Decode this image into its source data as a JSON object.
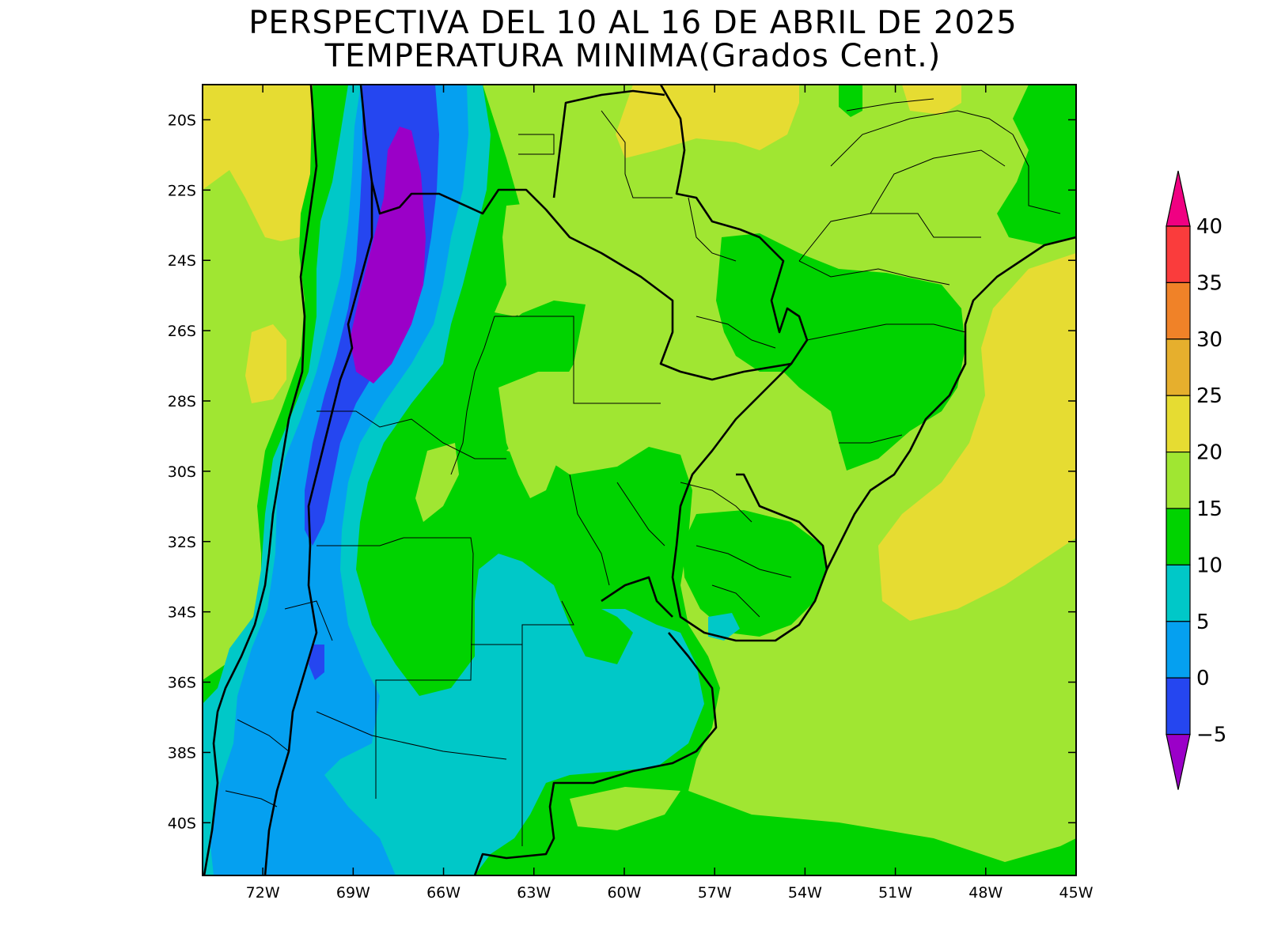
{
  "title": {
    "line1": "PERSPECTIVA DEL 10 AL 16 DE ABRIL DE 2025",
    "line2": "TEMPERATURA MINIMA(Grados Cent.)"
  },
  "map": {
    "lon_range": [
      -74,
      -45
    ],
    "lat_range": [
      -41.5,
      -19
    ]
  },
  "axes": {
    "lat_ticks": [
      "20S",
      "22S",
      "24S",
      "26S",
      "28S",
      "30S",
      "32S",
      "34S",
      "36S",
      "38S",
      "40S"
    ],
    "lon_ticks": [
      "72W",
      "69W",
      "66W",
      "63W",
      "60W",
      "57W",
      "54W",
      "51W",
      "48W",
      "45W"
    ]
  },
  "colorbar": {
    "labels": [
      "40",
      "35",
      "30",
      "25",
      "20",
      "15",
      "10",
      "5",
      "0",
      "−5"
    ],
    "colors": {
      "below_-5": "#9b00c8",
      "-5_0": "#2546f0",
      "0_5": "#05a0f0",
      "5_10": "#00c8c8",
      "10_15": "#00d300",
      "15_20": "#a0e632",
      "20_25": "#e6dc32",
      "25_30": "#e6af2d",
      "30_35": "#f08228",
      "35_40": "#fa3c3c",
      "above_40": "#f00082"
    }
  }
}
